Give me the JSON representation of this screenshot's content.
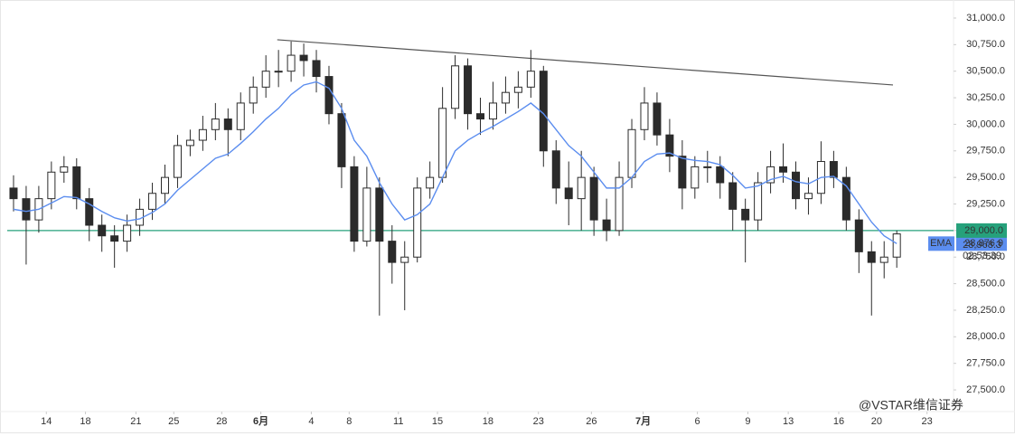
{
  "chart_data": {
    "type": "candlestick",
    "xlim": [
      -0.5,
      74.5
    ],
    "ylim": [
      27296,
      31170
    ],
    "xticks": [
      {
        "value": 2.6,
        "label": "14"
      },
      {
        "value": 5.7,
        "label": "18"
      },
      {
        "value": 9.7,
        "label": "21"
      },
      {
        "value": 12.7,
        "label": "25"
      },
      {
        "value": 16.5,
        "label": "28"
      },
      {
        "value": 19.6,
        "label": "6月"
      },
      {
        "value": 23.6,
        "label": "4"
      },
      {
        "value": 26.6,
        "label": "8"
      },
      {
        "value": 30.5,
        "label": "11"
      },
      {
        "value": 33.6,
        "label": "15"
      },
      {
        "value": 37.6,
        "label": "18"
      },
      {
        "value": 41.6,
        "label": "23"
      },
      {
        "value": 45.8,
        "label": "26"
      },
      {
        "value": 49.9,
        "label": "7月"
      },
      {
        "value": 54.2,
        "label": "6"
      },
      {
        "value": 58.2,
        "label": "9"
      },
      {
        "value": 61.4,
        "label": "13"
      },
      {
        "value": 65.4,
        "label": "16"
      },
      {
        "value": 68.4,
        "label": "20"
      },
      {
        "value": 72.4,
        "label": "23"
      }
    ],
    "yticks": [
      {
        "value": 27500,
        "label": "27,500.0"
      },
      {
        "value": 27750,
        "label": "27,750.0"
      },
      {
        "value": 28000,
        "label": "28,000.0"
      },
      {
        "value": 28250,
        "label": "28,250.0"
      },
      {
        "value": 28500,
        "label": "28,500.0"
      },
      {
        "value": 28750,
        "label": "28,750.0"
      },
      {
        "value": 29000,
        "label": "29,000.0"
      },
      {
        "value": 29250,
        "label": "29,250.0"
      },
      {
        "value": 29500,
        "label": "29,500.0"
      },
      {
        "value": 29750,
        "label": "29,750.0"
      },
      {
        "value": 30000,
        "label": "30,000.0"
      },
      {
        "value": 30250,
        "label": "30,250.0"
      },
      {
        "value": 30500,
        "label": "30,500.0"
      },
      {
        "value": 30750,
        "label": "30,750.0"
      },
      {
        "value": 31000,
        "label": "31,000.0"
      }
    ],
    "up_color": "#ffffff",
    "down_color": "#2b2b2b",
    "wick_color": "#2b2b2b",
    "open": [
      29400,
      29300,
      29100,
      29300,
      29550,
      29600,
      29300,
      29050,
      28950,
      28900,
      29050,
      29200,
      29350,
      29500,
      29800,
      29850,
      29950,
      30050,
      29950,
      30200,
      30350,
      30500,
      30500,
      30650,
      30600,
      30450,
      30100,
      29600,
      28900,
      29400,
      28900,
      28700,
      28750,
      29400,
      29500,
      30150,
      30550,
      30100,
      30050,
      30200,
      30300,
      30350,
      30500,
      29750,
      29400,
      29300,
      29500,
      29100,
      29000,
      29500,
      29950,
      30200,
      29900,
      29700,
      29400,
      29600,
      29600,
      29450,
      29200,
      29100,
      29450,
      29600,
      29550,
      29300,
      29350,
      29650,
      29500,
      29100,
      28800,
      28700,
      28750
    ],
    "high": [
      29520,
      29420,
      29420,
      29650,
      29700,
      29680,
      29400,
      29150,
      29050,
      29150,
      29300,
      29450,
      29620,
      29900,
      29950,
      30080,
      30200,
      30150,
      30300,
      30450,
      30650,
      30700,
      30780,
      30760,
      30700,
      30550,
      30200,
      29700,
      29600,
      29500,
      29050,
      28900,
      29500,
      29650,
      30350,
      30650,
      30620,
      30250,
      30400,
      30450,
      30500,
      30700,
      30550,
      29850,
      29650,
      29750,
      29600,
      29300,
      29650,
      30050,
      30350,
      30300,
      30050,
      29850,
      29700,
      29750,
      29700,
      29550,
      29300,
      29550,
      29750,
      29820,
      29650,
      29500,
      29840,
      29750,
      29600,
      29200,
      28900,
      28900,
      29000
    ],
    "low": [
      29180,
      28680,
      28980,
      29200,
      29450,
      29200,
      28900,
      28800,
      28650,
      28800,
      28950,
      29100,
      29250,
      29400,
      29700,
      29750,
      29850,
      29700,
      29850,
      30100,
      30250,
      30350,
      30400,
      30450,
      30300,
      30000,
      29400,
      28800,
      28850,
      28200,
      28500,
      28250,
      28700,
      29300,
      29450,
      30050,
      29950,
      29900,
      29950,
      30100,
      30150,
      30250,
      29600,
      29250,
      29050,
      29000,
      28950,
      28900,
      28950,
      29400,
      29850,
      29800,
      29550,
      29200,
      29300,
      29450,
      29300,
      29000,
      28700,
      29000,
      29350,
      29450,
      29200,
      29150,
      29250,
      29400,
      29000,
      28600,
      28200,
      28550,
      28650
    ],
    "close": [
      29300,
      29100,
      29300,
      29550,
      29600,
      29300,
      29050,
      28950,
      28900,
      29050,
      29200,
      29350,
      29500,
      29800,
      29850,
      29950,
      30050,
      29950,
      30200,
      30350,
      30500,
      30500,
      30650,
      30600,
      30450,
      30100,
      29600,
      28900,
      29400,
      28900,
      28700,
      28750,
      29400,
      29500,
      30150,
      30550,
      30100,
      30050,
      30200,
      30300,
      30350,
      30500,
      29750,
      29400,
      29300,
      29500,
      29100,
      29000,
      29500,
      29950,
      30200,
      29900,
      29700,
      29400,
      29600,
      29600,
      29450,
      29200,
      29100,
      29450,
      29600,
      29550,
      29300,
      29350,
      29650,
      29500,
      29100,
      28800,
      28700,
      28750,
      28968.3
    ],
    "series": [
      {
        "name": "EMA",
        "color": "#5b8def",
        "values": [
          29200,
          29180,
          29200,
          29260,
          29320,
          29310,
          29250,
          29180,
          29120,
          29090,
          29110,
          29170,
          29250,
          29380,
          29480,
          29580,
          29680,
          29720,
          29820,
          29930,
          30050,
          30150,
          30280,
          30370,
          30400,
          30340,
          30150,
          29850,
          29700,
          29450,
          29250,
          29100,
          29150,
          29250,
          29500,
          29750,
          29850,
          29920,
          29980,
          30050,
          30120,
          30200,
          30100,
          29950,
          29800,
          29700,
          29550,
          29400,
          29400,
          29500,
          29650,
          29720,
          29730,
          29680,
          29660,
          29650,
          29620,
          29520,
          29400,
          29420,
          29480,
          29510,
          29460,
          29440,
          29500,
          29510,
          29420,
          29250,
          29080,
          28950,
          28876.9
        ],
        "last_label": "28,876.9"
      }
    ],
    "trendline": {
      "x": [
        20.9,
        69.7
      ],
      "y": [
        30796,
        30370
      ],
      "color": "#555555"
    },
    "price_line": {
      "value": 29000,
      "label": "29,000.0",
      "color": "#26a17b"
    },
    "last_price": {
      "value": 28968.3,
      "label": "28,968.3"
    },
    "countdown": "02:53:39",
    "watermark": "@VSTAR维信证券"
  }
}
